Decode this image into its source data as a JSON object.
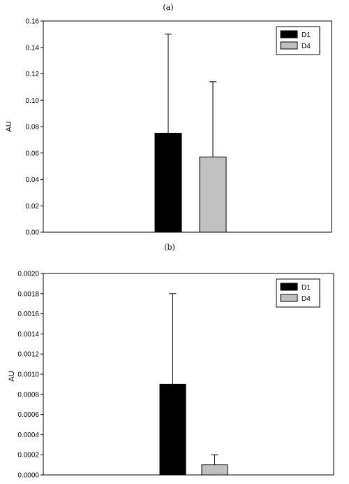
{
  "chart_data": [
    {
      "type": "bar",
      "panel_label": "(a)",
      "ylabel": "AU",
      "ylim": [
        0,
        0.16
      ],
      "yticks": [
        "0.00",
        "0.02",
        "0.04",
        "0.06",
        "0.08",
        "0.10",
        "0.12",
        "0.14",
        "0.16"
      ],
      "series": [
        {
          "name": "D1",
          "value": 0.075,
          "error": 0.075,
          "color": "#000000"
        },
        {
          "name": "D4",
          "value": 0.057,
          "error": 0.057,
          "color": "#c0c0c0"
        }
      ],
      "legend_position": "top-right",
      "grid": false
    },
    {
      "type": "bar",
      "panel_label": "(b)",
      "ylabel": "AU",
      "ylim": [
        0,
        0.002
      ],
      "yticks": [
        "0.0000",
        "0.0002",
        "0.0004",
        "0.0006",
        "0.0008",
        "0.0010",
        "0.0012",
        "0.0014",
        "0.0016",
        "0.0018",
        "0.0020"
      ],
      "series": [
        {
          "name": "D1",
          "value": 0.0009,
          "error": 0.0009,
          "color": "#000000"
        },
        {
          "name": "D4",
          "value": 0.0001,
          "error": 0.0001,
          "color": "#c0c0c0"
        }
      ],
      "legend_position": "top-right",
      "grid": false
    }
  ]
}
